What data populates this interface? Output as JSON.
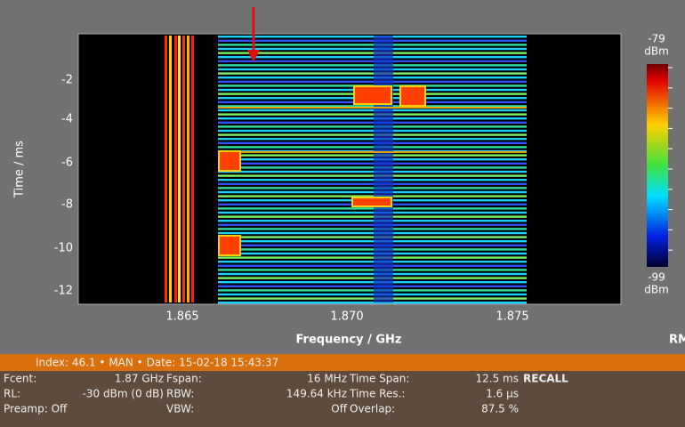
{
  "plot": {
    "y_axis_label": "Time / ms",
    "x_axis_label": "Frequency / GHz",
    "y_ticks": [
      "-2",
      "-4",
      "-6",
      "-8",
      "-10",
      "-12"
    ],
    "x_ticks": [
      "1.865",
      "1.870",
      "1.875"
    ],
    "detector": "RMS"
  },
  "colorbar": {
    "max": "-79",
    "max_unit": "dBm",
    "min": "-99",
    "min_unit": "dBm"
  },
  "status_bar": "Index: 46.1 • MAN • Date: 15-02-18 15:43:37",
  "info": {
    "rows": [
      [
        "Fcent:",
        "1.87 GHz",
        "Fspan:",
        "16 MHz",
        "Time Span:",
        "12.5 ms",
        "RECALL"
      ],
      [
        "RL:",
        "-30 dBm (0 dB)",
        "RBW:",
        "149.64 kHz",
        "Time Res.:",
        "1.6 µs"
      ],
      [
        "Preamp: Off",
        "VBW:",
        "Off",
        "Overlap:",
        "87.5 %"
      ]
    ]
  }
}
